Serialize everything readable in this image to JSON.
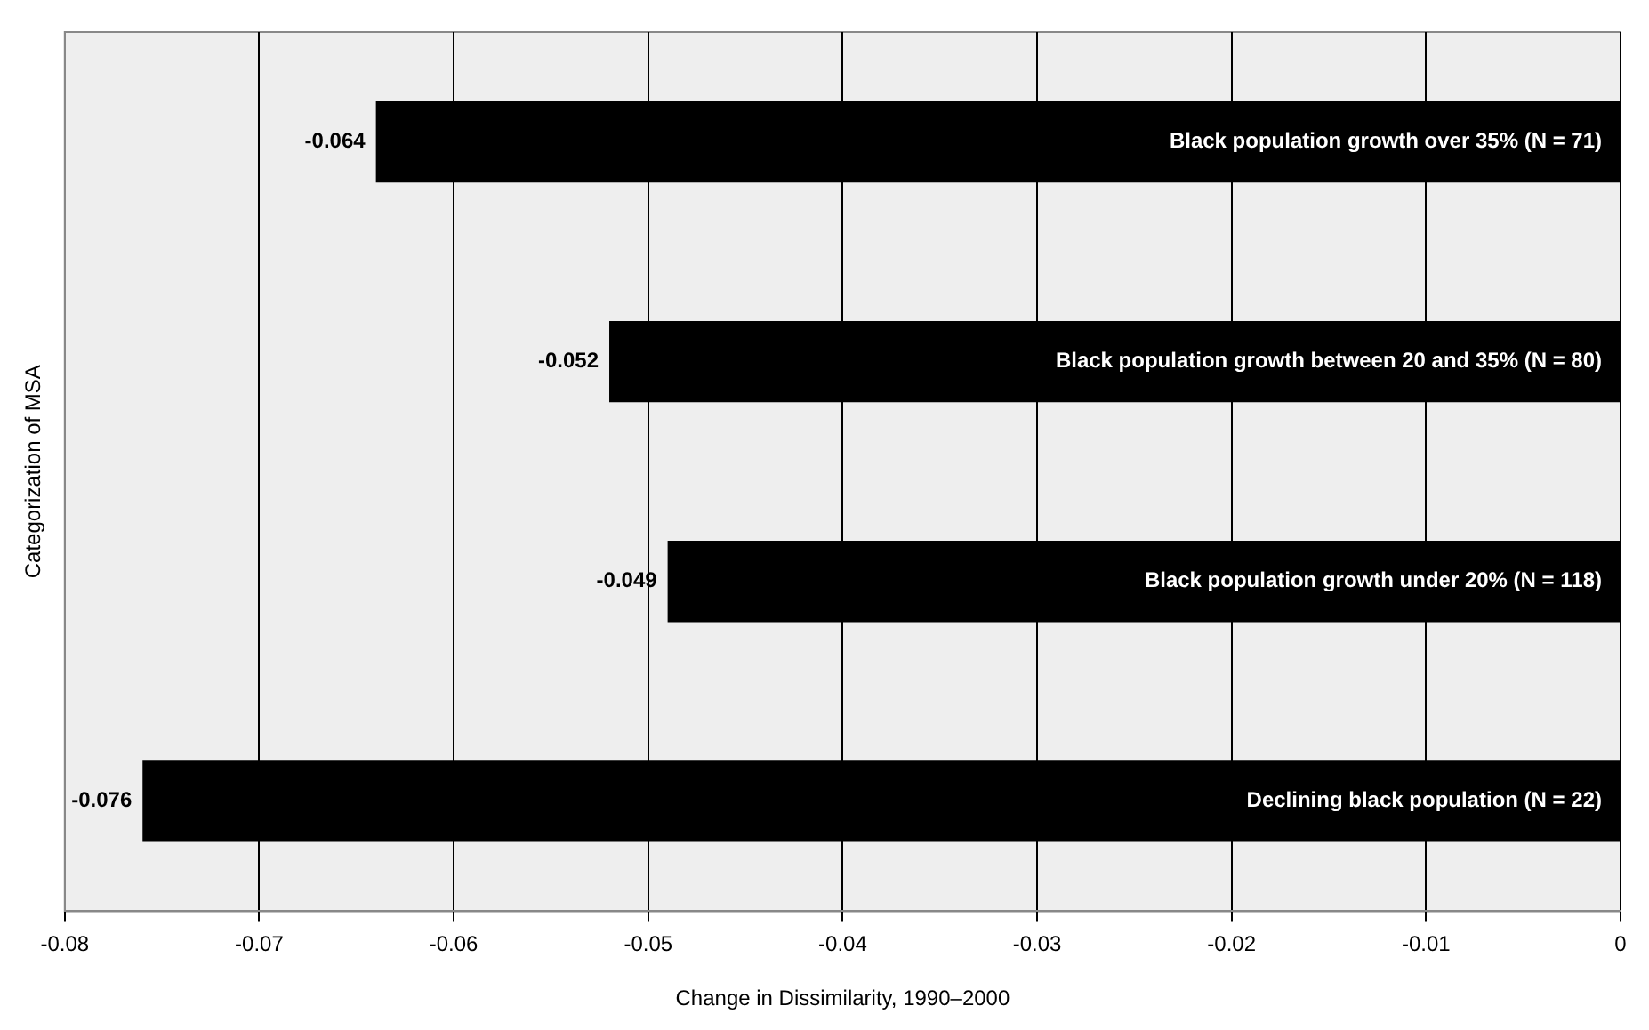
{
  "chart_data": {
    "type": "bar",
    "orientation": "horizontal",
    "xlabel": "Change in Dissimilarity, 1990–2000",
    "ylabel": "Categorization of MSA",
    "categories": [
      "Black population growth over 35% (N = 71)",
      "Black population growth between 20 and 35% (N = 80)",
      "Black population growth under 20% (N = 118)",
      "Declining black population (N = 22)"
    ],
    "values": [
      -0.064,
      -0.052,
      -0.049,
      -0.076
    ],
    "color": "#000000",
    "xlim": [
      -0.08,
      0
    ],
    "xticks": [
      -0.08,
      -0.07,
      -0.06,
      -0.05,
      -0.04,
      -0.03,
      -0.02,
      -0.01,
      0
    ],
    "grid": "x",
    "legend": false,
    "data_labels": true
  }
}
